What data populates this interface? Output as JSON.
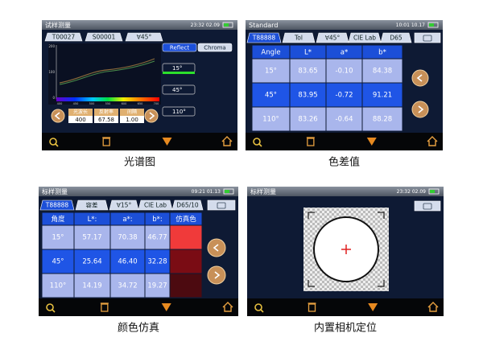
{
  "panels": [
    {
      "caption": "光谱图",
      "title": "试样测量",
      "time": "23:32 02.09",
      "tabs": [
        "T00027",
        "S00001",
        "∀45°"
      ],
      "modes": [
        "Reflect",
        "Chroma"
      ],
      "angles": [
        "15°",
        "45°",
        "110°"
      ],
      "y_axis": [
        "200",
        "100",
        "0"
      ],
      "x_axis": [
        "400",
        "450",
        "500",
        "550",
        "600",
        "650",
        "700"
      ],
      "fields": [
        {
          "label": "光波长",
          "value": "400"
        },
        {
          "label": "反射率",
          "value": "67.58"
        },
        {
          "label": "间隔",
          "value": "1.00"
        }
      ]
    },
    {
      "caption": "色差值",
      "title": "Standard",
      "time": "10:01 10.17",
      "tabs": [
        "T88888",
        "Tol",
        "∀45°",
        "CIE Lab",
        "D65"
      ],
      "table": {
        "header": [
          "Angle",
          "L*",
          "a*",
          "b*"
        ],
        "rows": [
          [
            "15°",
            "83.65",
            "-0.10",
            "84.38"
          ],
          [
            "45°",
            "83.95",
            "-0.72",
            "91.21"
          ],
          [
            "110°",
            "83.26",
            "-0.64",
            "88.28"
          ]
        ]
      }
    },
    {
      "caption": "颜色仿真",
      "title": "标样测量",
      "time": "09:21 01.13",
      "tabs": [
        "T88888",
        "容差",
        "∀15°",
        "CIE Lab",
        "D65/10"
      ],
      "table": {
        "header": [
          "角度",
          "L*:",
          "a*:",
          "b*:",
          "仿真色"
        ],
        "rows": [
          [
            "15°",
            "57.17",
            "70.38",
            "46.77"
          ],
          [
            "45°",
            "25.64",
            "46.40",
            "32.28"
          ],
          [
            "110°",
            "14.19",
            "34.72",
            "19.27"
          ]
        ],
        "swatches": [
          "#f03a3a",
          "#7a0c14",
          "#4c0a10"
        ]
      }
    },
    {
      "caption": "内置相机定位",
      "title": "标样测量",
      "time": "23:32 02.09"
    }
  ]
}
